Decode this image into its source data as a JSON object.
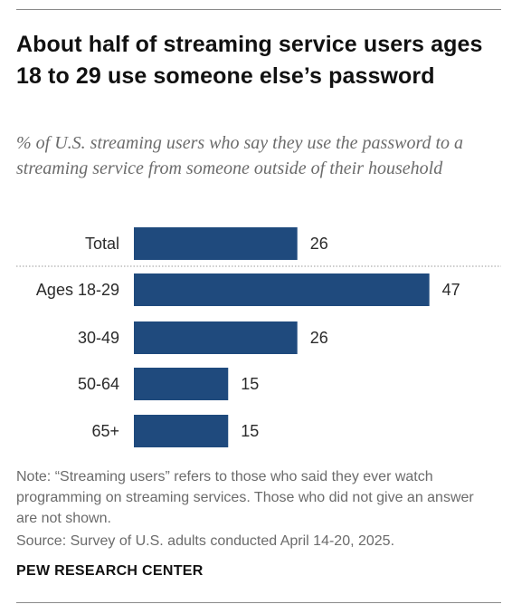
{
  "header": {
    "title": "About half of streaming service users ages 18 to 29 use someone else’s password",
    "subtitle": "% of U.S. streaming users who say they use the password to a streaming service from someone outside of their household"
  },
  "chart_data": {
    "type": "bar",
    "orientation": "horizontal",
    "categories": [
      "Total",
      "Ages 18-29",
      "30-49",
      "50-64",
      "65+"
    ],
    "values": [
      26,
      47,
      26,
      15,
      15
    ],
    "value_labels": [
      "26",
      "47",
      "26",
      "15",
      "15"
    ],
    "bar_color": "#1f4a7d",
    "separator_after": "Total",
    "xlim": [
      0,
      50
    ],
    "grid": false
  },
  "footer": {
    "note": "Note: “Streaming users” refers to those who said they ever watch programming on streaming services. Those who did not give an answer are not shown.",
    "source": "Source: Survey of U.S. adults conducted April 14-20, 2025.",
    "brand": "PEW RESEARCH CENTER"
  }
}
